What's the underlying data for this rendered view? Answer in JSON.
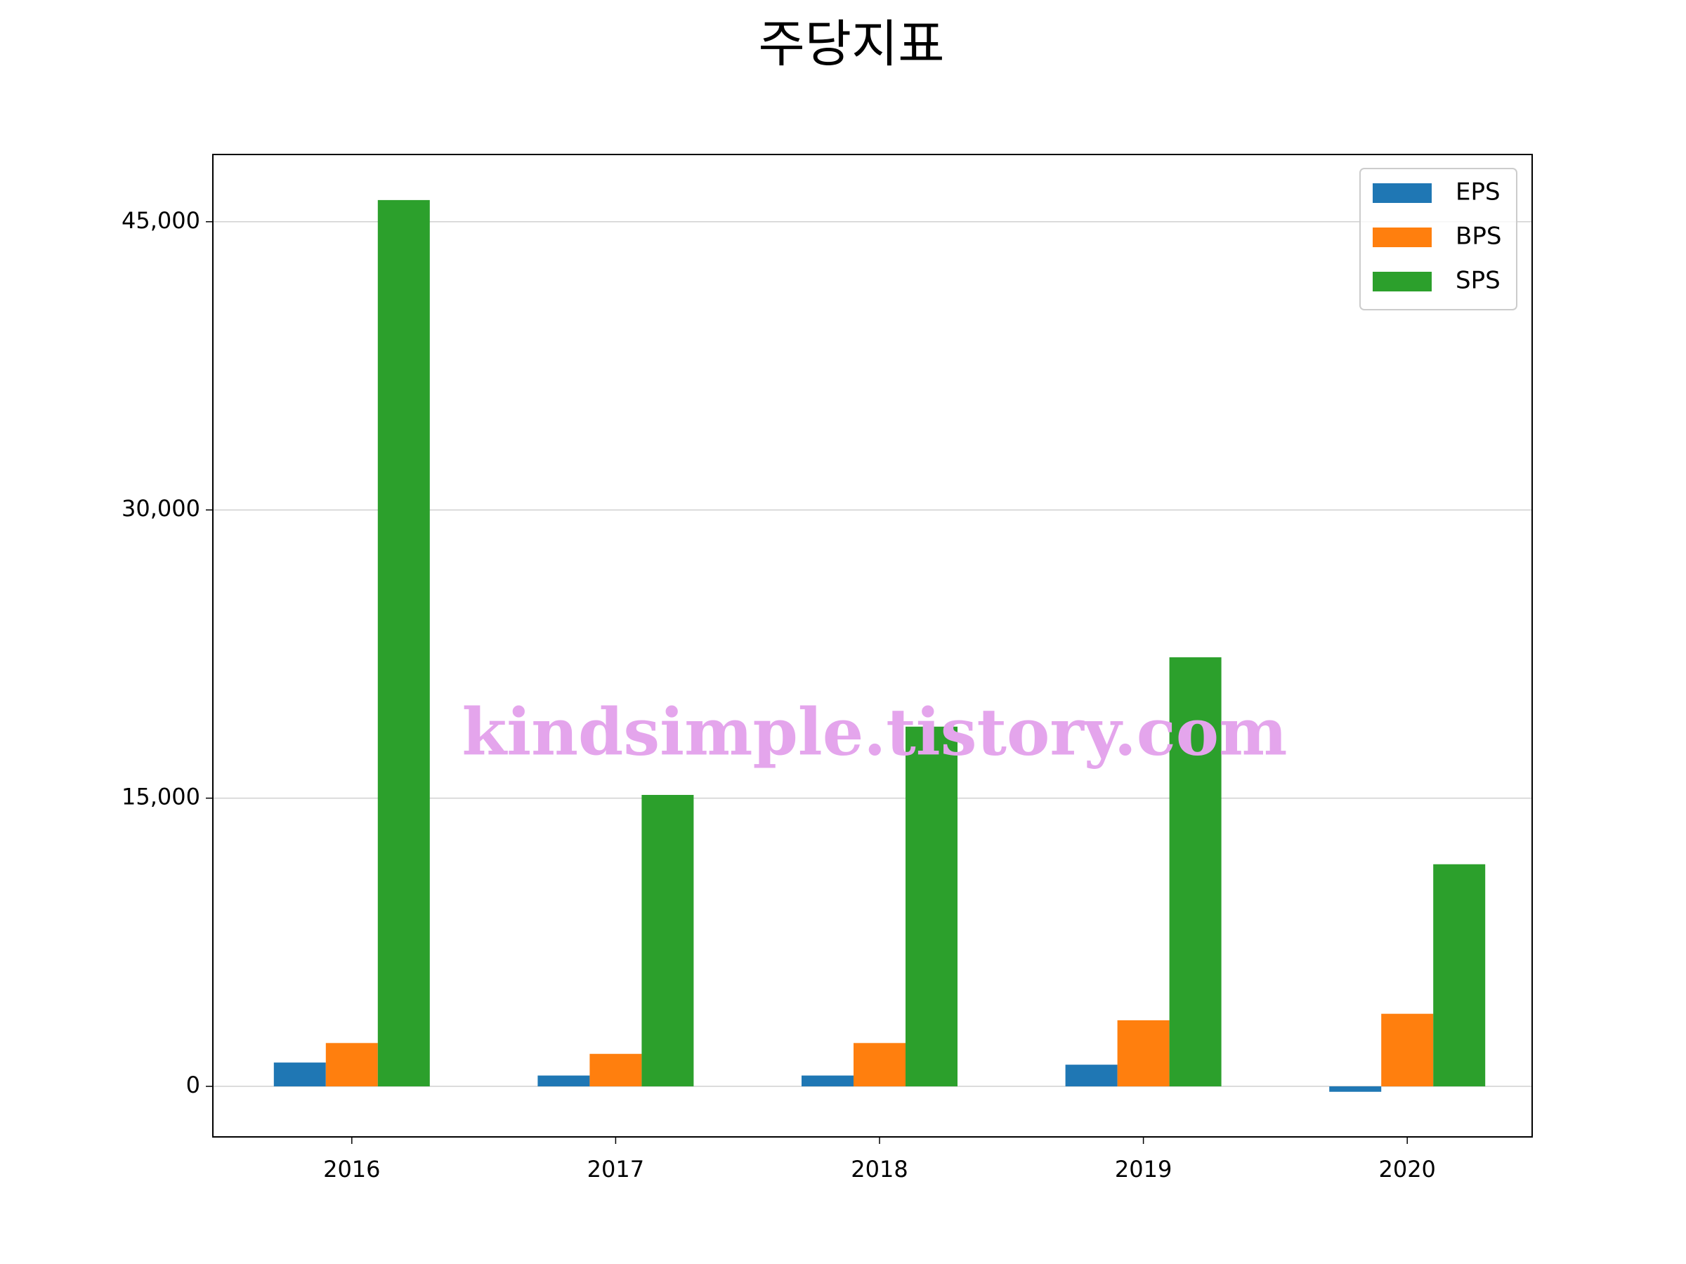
{
  "chart_data": {
    "type": "bar",
    "title": "주당지표",
    "categories": [
      "2016",
      "2017",
      "2018",
      "2019",
      "2020"
    ],
    "series": [
      {
        "name": "EPS",
        "color": "#1f77b4",
        "values": [
          1240,
          564,
          564,
          1128,
          -282
        ]
      },
      {
        "name": "BPS",
        "color": "#ff7f0e",
        "values": [
          2256,
          1692,
          2256,
          3440,
          3778
        ]
      },
      {
        "name": "SPS",
        "color": "#2ca02c",
        "values": [
          46128,
          15169,
          18722,
          22331,
          11560
        ]
      }
    ],
    "ylim": [
      -2630,
      48500
    ],
    "yticks": [
      0,
      {
        "value": 15000,
        "label": "15,000"
      },
      {
        "value": 30000,
        "label": "30,000"
      },
      {
        "value": 45000,
        "label": "45,000"
      }
    ],
    "grid": true,
    "legend": "upper right",
    "watermark": "kindsimple.tistory.com"
  }
}
